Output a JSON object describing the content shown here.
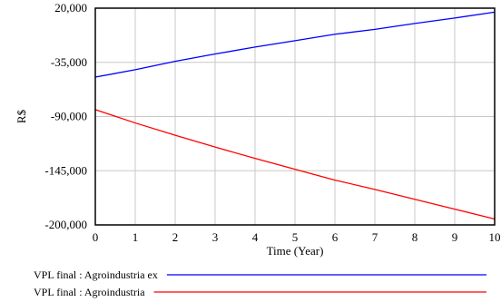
{
  "chart_data": {
    "type": "line",
    "xlabel": "Time (Year)",
    "ylabel": "R$",
    "x": [
      0,
      1,
      2,
      3,
      4,
      5,
      6,
      7,
      8,
      9,
      10
    ],
    "xlim": [
      0,
      10
    ],
    "ylim": [
      -200000,
      20000
    ],
    "yticks": [
      20000,
      -35000,
      -90000,
      -145000,
      -200000
    ],
    "ytick_labels": [
      "20,000",
      "-35,000",
      "-90,000",
      "-145,000",
      "-200,000"
    ],
    "xtick_labels": [
      "0",
      "1",
      "2",
      "3",
      "4",
      "5",
      "6",
      "7",
      "8",
      "9",
      "10"
    ],
    "grid": true,
    "legend_placement": "bottom",
    "series": [
      {
        "name": "VPL final : Agroindustria ex",
        "color": "#0000ff",
        "values": [
          -50000,
          -42500,
          -34000,
          -26500,
          -19500,
          -13000,
          -6500,
          -1500,
          4500,
          10000,
          16000
        ]
      },
      {
        "name": "VPL final : Agroindustria",
        "color": "#ff0000",
        "values": [
          -83000,
          -96500,
          -109000,
          -121000,
          -132500,
          -143500,
          -154500,
          -164000,
          -174000,
          -184000,
          -194000
        ]
      }
    ]
  }
}
